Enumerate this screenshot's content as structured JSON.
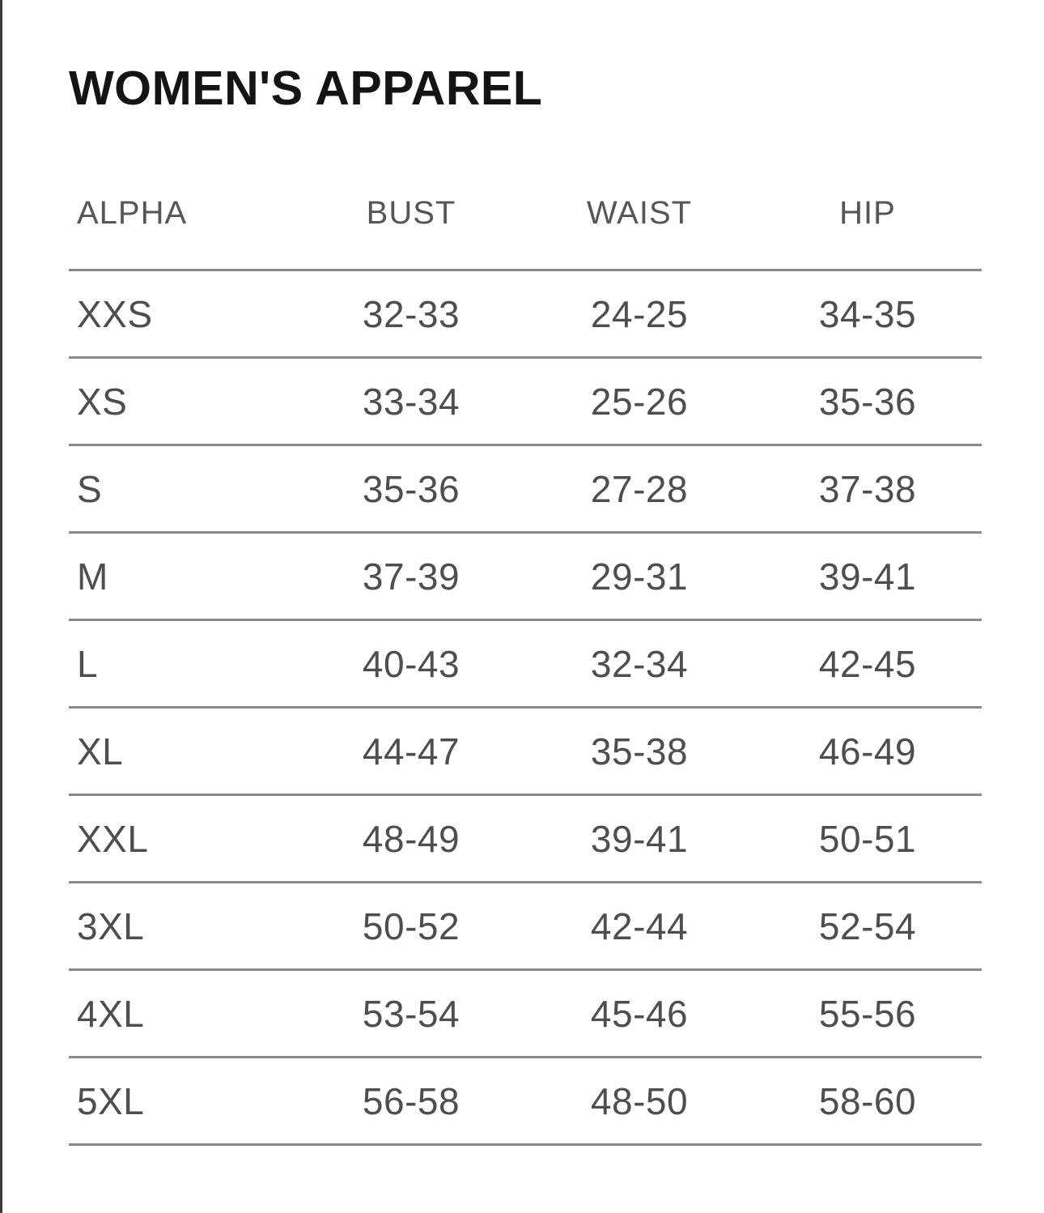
{
  "page": {
    "title": "WOMEN'S APPAREL"
  },
  "table": {
    "columns": [
      "ALPHA",
      "BUST",
      "WAIST",
      "HIP"
    ],
    "rows": [
      {
        "alpha": "XXS",
        "bust": "32-33",
        "waist": "24-25",
        "hip": "34-35"
      },
      {
        "alpha": "XS",
        "bust": "33-34",
        "waist": "25-26",
        "hip": "35-36"
      },
      {
        "alpha": "S",
        "bust": "35-36",
        "waist": "27-28",
        "hip": "37-38"
      },
      {
        "alpha": "M",
        "bust": "37-39",
        "waist": "29-31",
        "hip": "39-41"
      },
      {
        "alpha": "L",
        "bust": "40-43",
        "waist": "32-34",
        "hip": "42-45"
      },
      {
        "alpha": "XL",
        "bust": "44-47",
        "waist": "35-38",
        "hip": "46-49"
      },
      {
        "alpha": "XXL",
        "bust": "48-49",
        "waist": "39-41",
        "hip": "50-51"
      },
      {
        "alpha": "3XL",
        "bust": "50-52",
        "waist": "42-44",
        "hip": "52-54"
      },
      {
        "alpha": "4XL",
        "bust": "53-54",
        "waist": "45-46",
        "hip": "55-56"
      },
      {
        "alpha": "5XL",
        "bust": "56-58",
        "waist": "48-50",
        "hip": "58-60"
      }
    ]
  },
  "colors": {
    "background": "#ffffff",
    "title_text": "#141414",
    "header_text": "#55565a",
    "cell_text": "#4d4e51",
    "divider_line": "#8a8a8a",
    "left_edge_border": "#3c3c3e"
  }
}
